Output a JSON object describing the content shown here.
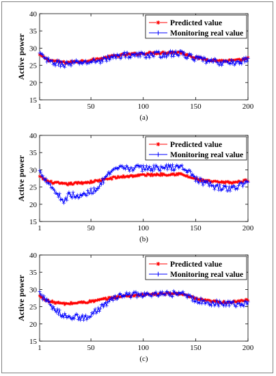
{
  "chart_data": [
    {
      "type": "line",
      "caption": "(a)",
      "ylabel": "Active power",
      "xlim": [
        1,
        200
      ],
      "ylim": [
        15,
        40
      ],
      "xticks": [
        "1",
        "50",
        "100",
        "150",
        "200"
      ],
      "yticks": [
        "15",
        "20",
        "25",
        "30",
        "35",
        "40"
      ],
      "legend_position": "top-right",
      "series": [
        {
          "name": "Predicted value",
          "color": "#ff0000",
          "marker": "*",
          "points": [
            [
              1,
              28
            ],
            [
              10,
              26.5
            ],
            [
              25,
              25.8
            ],
            [
              40,
              26.2
            ],
            [
              50,
              26.5
            ],
            [
              60,
              27
            ],
            [
              70,
              27.6
            ],
            [
              80,
              28
            ],
            [
              100,
              28.5
            ],
            [
              120,
              28.7
            ],
            [
              135,
              28.8
            ],
            [
              150,
              27.3
            ],
            [
              160,
              26.7
            ],
            [
              175,
              26.3
            ],
            [
              190,
              26.4
            ],
            [
              200,
              27
            ]
          ]
        },
        {
          "name": "Monitoring real value",
          "color": "#0000ff",
          "marker": "+",
          "points": [
            [
              1,
              28.3
            ],
            [
              10,
              26
            ],
            [
              25,
              25.3
            ],
            [
              40,
              25.8
            ],
            [
              50,
              26
            ],
            [
              60,
              26.5
            ],
            [
              70,
              27.2
            ],
            [
              80,
              28
            ],
            [
              100,
              28
            ],
            [
              120,
              28.2
            ],
            [
              135,
              28.5
            ],
            [
              150,
              27
            ],
            [
              160,
              26.3
            ],
            [
              175,
              25.8
            ],
            [
              190,
              25.8
            ],
            [
              200,
              26.8
            ]
          ]
        }
      ]
    },
    {
      "type": "line",
      "caption": "(b)",
      "ylabel": "Active power",
      "xlim": [
        1,
        200
      ],
      "ylim": [
        15,
        40
      ],
      "xticks": [
        "1",
        "50",
        "100",
        "150",
        "200"
      ],
      "yticks": [
        "15",
        "20",
        "25",
        "30",
        "35",
        "40"
      ],
      "legend_position": "top-right",
      "series": [
        {
          "name": "Predicted value",
          "color": "#ff0000",
          "marker": "*",
          "points": [
            [
              1,
              28
            ],
            [
              10,
              26.5
            ],
            [
              25,
              25.8
            ],
            [
              40,
              26.2
            ],
            [
              50,
              26.5
            ],
            [
              60,
              27
            ],
            [
              70,
              27.6
            ],
            [
              80,
              28
            ],
            [
              100,
              28.5
            ],
            [
              120,
              28.7
            ],
            [
              135,
              28.8
            ],
            [
              150,
              27.3
            ],
            [
              160,
              26.7
            ],
            [
              175,
              26.3
            ],
            [
              190,
              26.4
            ],
            [
              200,
              27
            ]
          ]
        },
        {
          "name": "Monitoring real value",
          "color": "#0000ff",
          "marker": "+",
          "points": [
            [
              1,
              29.5
            ],
            [
              8,
              27
            ],
            [
              15,
              24
            ],
            [
              24,
              21
            ],
            [
              30,
              23
            ],
            [
              38,
              22
            ],
            [
              45,
              23
            ],
            [
              55,
              24.5
            ],
            [
              65,
              28
            ],
            [
              75,
              30.3
            ],
            [
              85,
              30.5
            ],
            [
              100,
              30.5
            ],
            [
              120,
              30.6
            ],
            [
              138,
              30.8
            ],
            [
              145,
              29
            ],
            [
              152,
              27
            ],
            [
              160,
              26
            ],
            [
              170,
              25
            ],
            [
              180,
              24.5
            ],
            [
              190,
              25
            ],
            [
              195,
              26
            ],
            [
              200,
              26
            ]
          ]
        }
      ]
    },
    {
      "type": "line",
      "caption": "(c)",
      "ylabel": "Active power",
      "xlim": [
        1,
        200
      ],
      "ylim": [
        15,
        40
      ],
      "xticks": [
        "1",
        "50",
        "100",
        "150",
        "200"
      ],
      "yticks": [
        "15",
        "20",
        "25",
        "30",
        "35",
        "40"
      ],
      "legend_position": "top-right",
      "series": [
        {
          "name": "Predicted value",
          "color": "#ff0000",
          "marker": "*",
          "points": [
            [
              1,
              28
            ],
            [
              10,
              26.5
            ],
            [
              25,
              25.8
            ],
            [
              40,
              26.2
            ],
            [
              50,
              26.5
            ],
            [
              60,
              27
            ],
            [
              70,
              27.6
            ],
            [
              80,
              28
            ],
            [
              100,
              28.5
            ],
            [
              120,
              28.7
            ],
            [
              135,
              28.8
            ],
            [
              150,
              27.3
            ],
            [
              160,
              26.7
            ],
            [
              175,
              26.3
            ],
            [
              190,
              26.4
            ],
            [
              200,
              27
            ]
          ]
        },
        {
          "name": "Monitoring real value",
          "color": "#0000ff",
          "marker": "+",
          "points": [
            [
              1,
              29
            ],
            [
              8,
              26.5
            ],
            [
              15,
              24
            ],
            [
              25,
              22.5
            ],
            [
              35,
              22
            ],
            [
              45,
              21.8
            ],
            [
              52,
              23
            ],
            [
              60,
              25
            ],
            [
              70,
              27
            ],
            [
              80,
              28.3
            ],
            [
              90,
              28.5
            ],
            [
              100,
              28.4
            ],
            [
              120,
              28.5
            ],
            [
              135,
              29
            ],
            [
              142,
              28
            ],
            [
              150,
              27
            ],
            [
              160,
              26.2
            ],
            [
              175,
              26
            ],
            [
              190,
              25.8
            ],
            [
              200,
              25.8
            ]
          ]
        }
      ]
    }
  ]
}
